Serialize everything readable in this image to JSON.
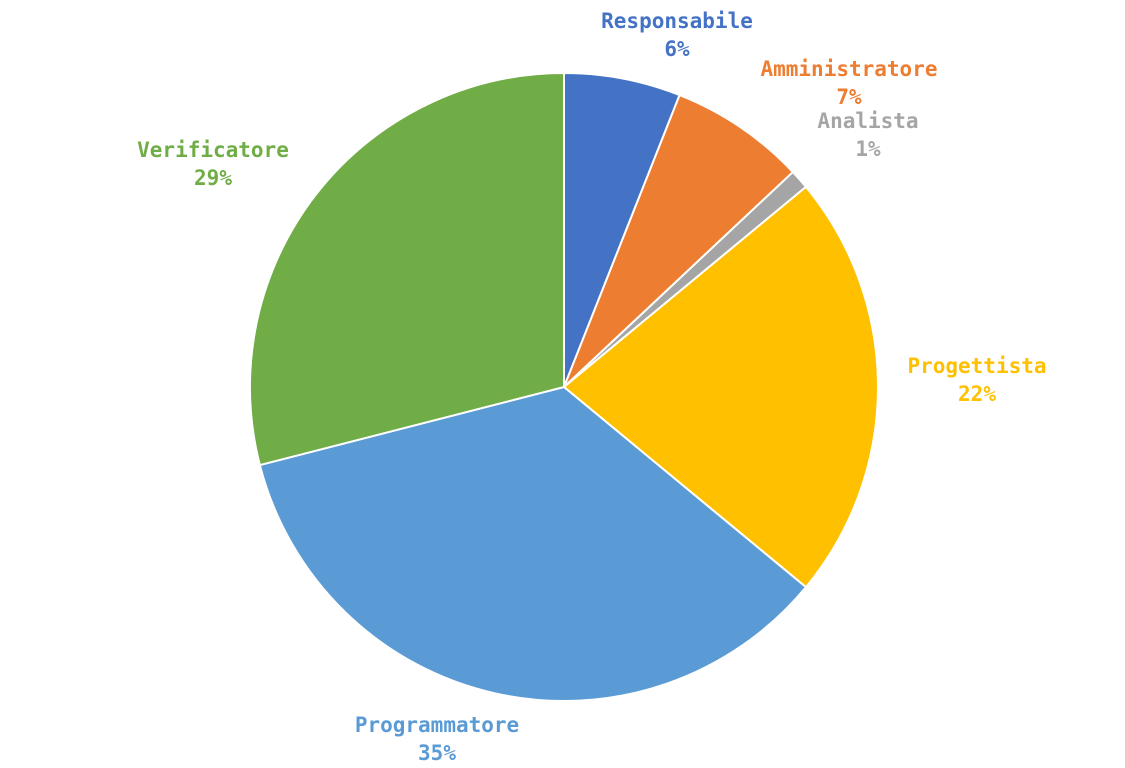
{
  "chart_data": {
    "type": "pie",
    "title": "",
    "legend": "none",
    "slices": [
      {
        "label": "Responsabile",
        "value": 6,
        "display": "6%",
        "color": "#4472C4"
      },
      {
        "label": "Amministratore",
        "value": 7,
        "display": "7%",
        "color": "#ED7D31"
      },
      {
        "label": "Analista",
        "value": 1,
        "display": "1%",
        "color": "#A5A5A5"
      },
      {
        "label": "Progettista",
        "value": 22,
        "display": "22%",
        "color": "#FFC000"
      },
      {
        "label": "Programmatore",
        "value": 35,
        "display": "35%",
        "color": "#5B9BD5"
      },
      {
        "label": "Verificatore",
        "value": 29,
        "display": "29%",
        "color": "#70AD47"
      }
    ]
  }
}
